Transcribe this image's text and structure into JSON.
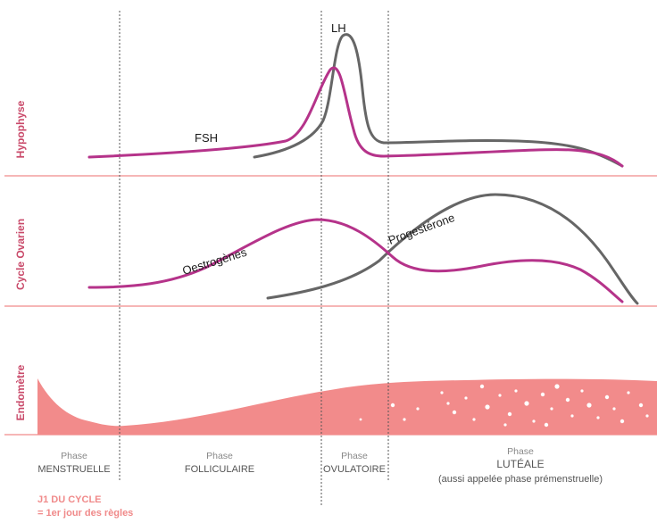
{
  "colors": {
    "magenta": "#b5338a",
    "gray": "#666666",
    "salmon": "#f08a8a",
    "pink_fill": "#f28b8b",
    "label_pink": "#c94a6a",
    "divider": "#555555"
  },
  "rows": {
    "hypophyse": "Hypophyse",
    "cycle_ovarien": "Cycle Ovarien",
    "endometre": "Endomètre"
  },
  "curves": {
    "fsh": "FSH",
    "lh": "LH",
    "oestrogenes": "Oestrogènes",
    "progesterone": "Progestérone"
  },
  "phases": [
    {
      "word": "Phase",
      "name": "MENSTRUELLE",
      "sub": ""
    },
    {
      "word": "Phase",
      "name": "FOLLICULAIRE",
      "sub": ""
    },
    {
      "word": "Phase",
      "name": "OVULATOIRE",
      "sub": ""
    },
    {
      "word": "Phase",
      "name": "LUTÉALE",
      "sub": "(aussi appelée phase prémenstruelle)"
    }
  ],
  "note": {
    "line1": "J1 DU CYCLE",
    "line2": "= 1er jour des règles"
  }
}
